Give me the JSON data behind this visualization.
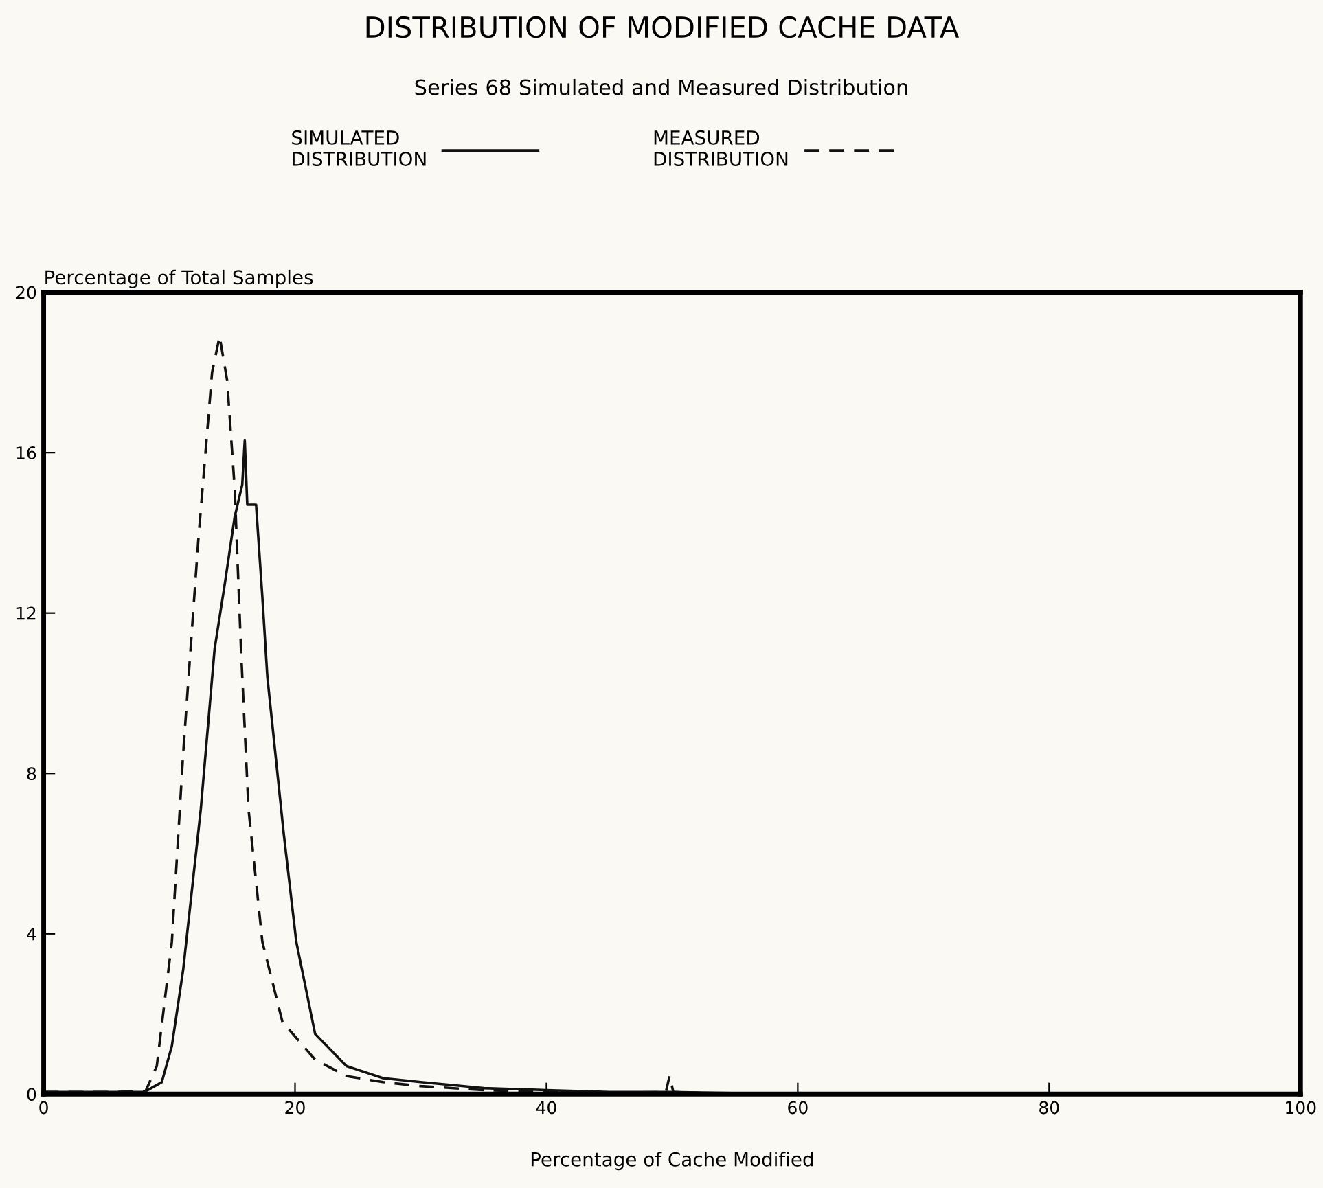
{
  "chart_data": {
    "type": "line",
    "title": "DISTRIBUTION OF MODIFIED CACHE DATA",
    "subtitle": "Series 68 Simulated and Measured Distribution",
    "xlabel": "Percentage of Cache Modified",
    "ylabel": "Percentage of Total Samples",
    "series": [
      {
        "name": "SIMULATED\nDISTRIBUTION",
        "color": "#111111",
        "line_style": "solid",
        "x": [
          0,
          5,
          8,
          9.4,
          10.2,
          11.1,
          12.5,
          13.6,
          14.4,
          15.2,
          15.8,
          16.0,
          16.2,
          16.9,
          17.4,
          17.8,
          19.1,
          20.1,
          21.6,
          24.1,
          27,
          30,
          35,
          40,
          45,
          50,
          60,
          80,
          100
        ],
        "values": [
          0.05,
          0.05,
          0.05,
          0.3,
          1.2,
          3.1,
          7.1,
          11.1,
          12.7,
          14.4,
          15.2,
          16.3,
          14.7,
          14.7,
          12.4,
          10.4,
          6.5,
          3.8,
          1.5,
          0.7,
          0.4,
          0.3,
          0.15,
          0.1,
          0.05,
          0.05,
          0,
          0,
          0
        ]
      },
      {
        "name": "MEASURED\nDISTRIBUTION",
        "color": "#111111",
        "line_style": "dashed",
        "x": [
          0,
          5,
          8.1,
          9.0,
          10.2,
          11.1,
          12.3,
          13.4,
          14.0,
          14.6,
          15.2,
          15.7,
          16.3,
          17.4,
          19.0,
          21.6,
          24.1,
          27,
          30,
          35,
          40,
          45,
          49.5,
          49.8,
          50.1,
          55,
          60,
          80,
          100
        ],
        "values": [
          0.05,
          0.05,
          0.07,
          0.7,
          3.8,
          8.5,
          13.8,
          18.0,
          18.9,
          17.8,
          15.1,
          11.1,
          7.1,
          3.8,
          1.8,
          0.86,
          0.45,
          0.3,
          0.2,
          0.1,
          0.05,
          0.03,
          0.05,
          0.45,
          0.05,
          0,
          0,
          0,
          0
        ]
      }
    ],
    "xlim": [
      0,
      100
    ],
    "xticks": [
      0,
      20,
      40,
      60,
      80,
      100
    ],
    "ylim": [
      0,
      20
    ],
    "yticks": [
      0,
      4,
      8,
      12,
      16,
      20
    ],
    "grid": false,
    "legend": "top"
  }
}
